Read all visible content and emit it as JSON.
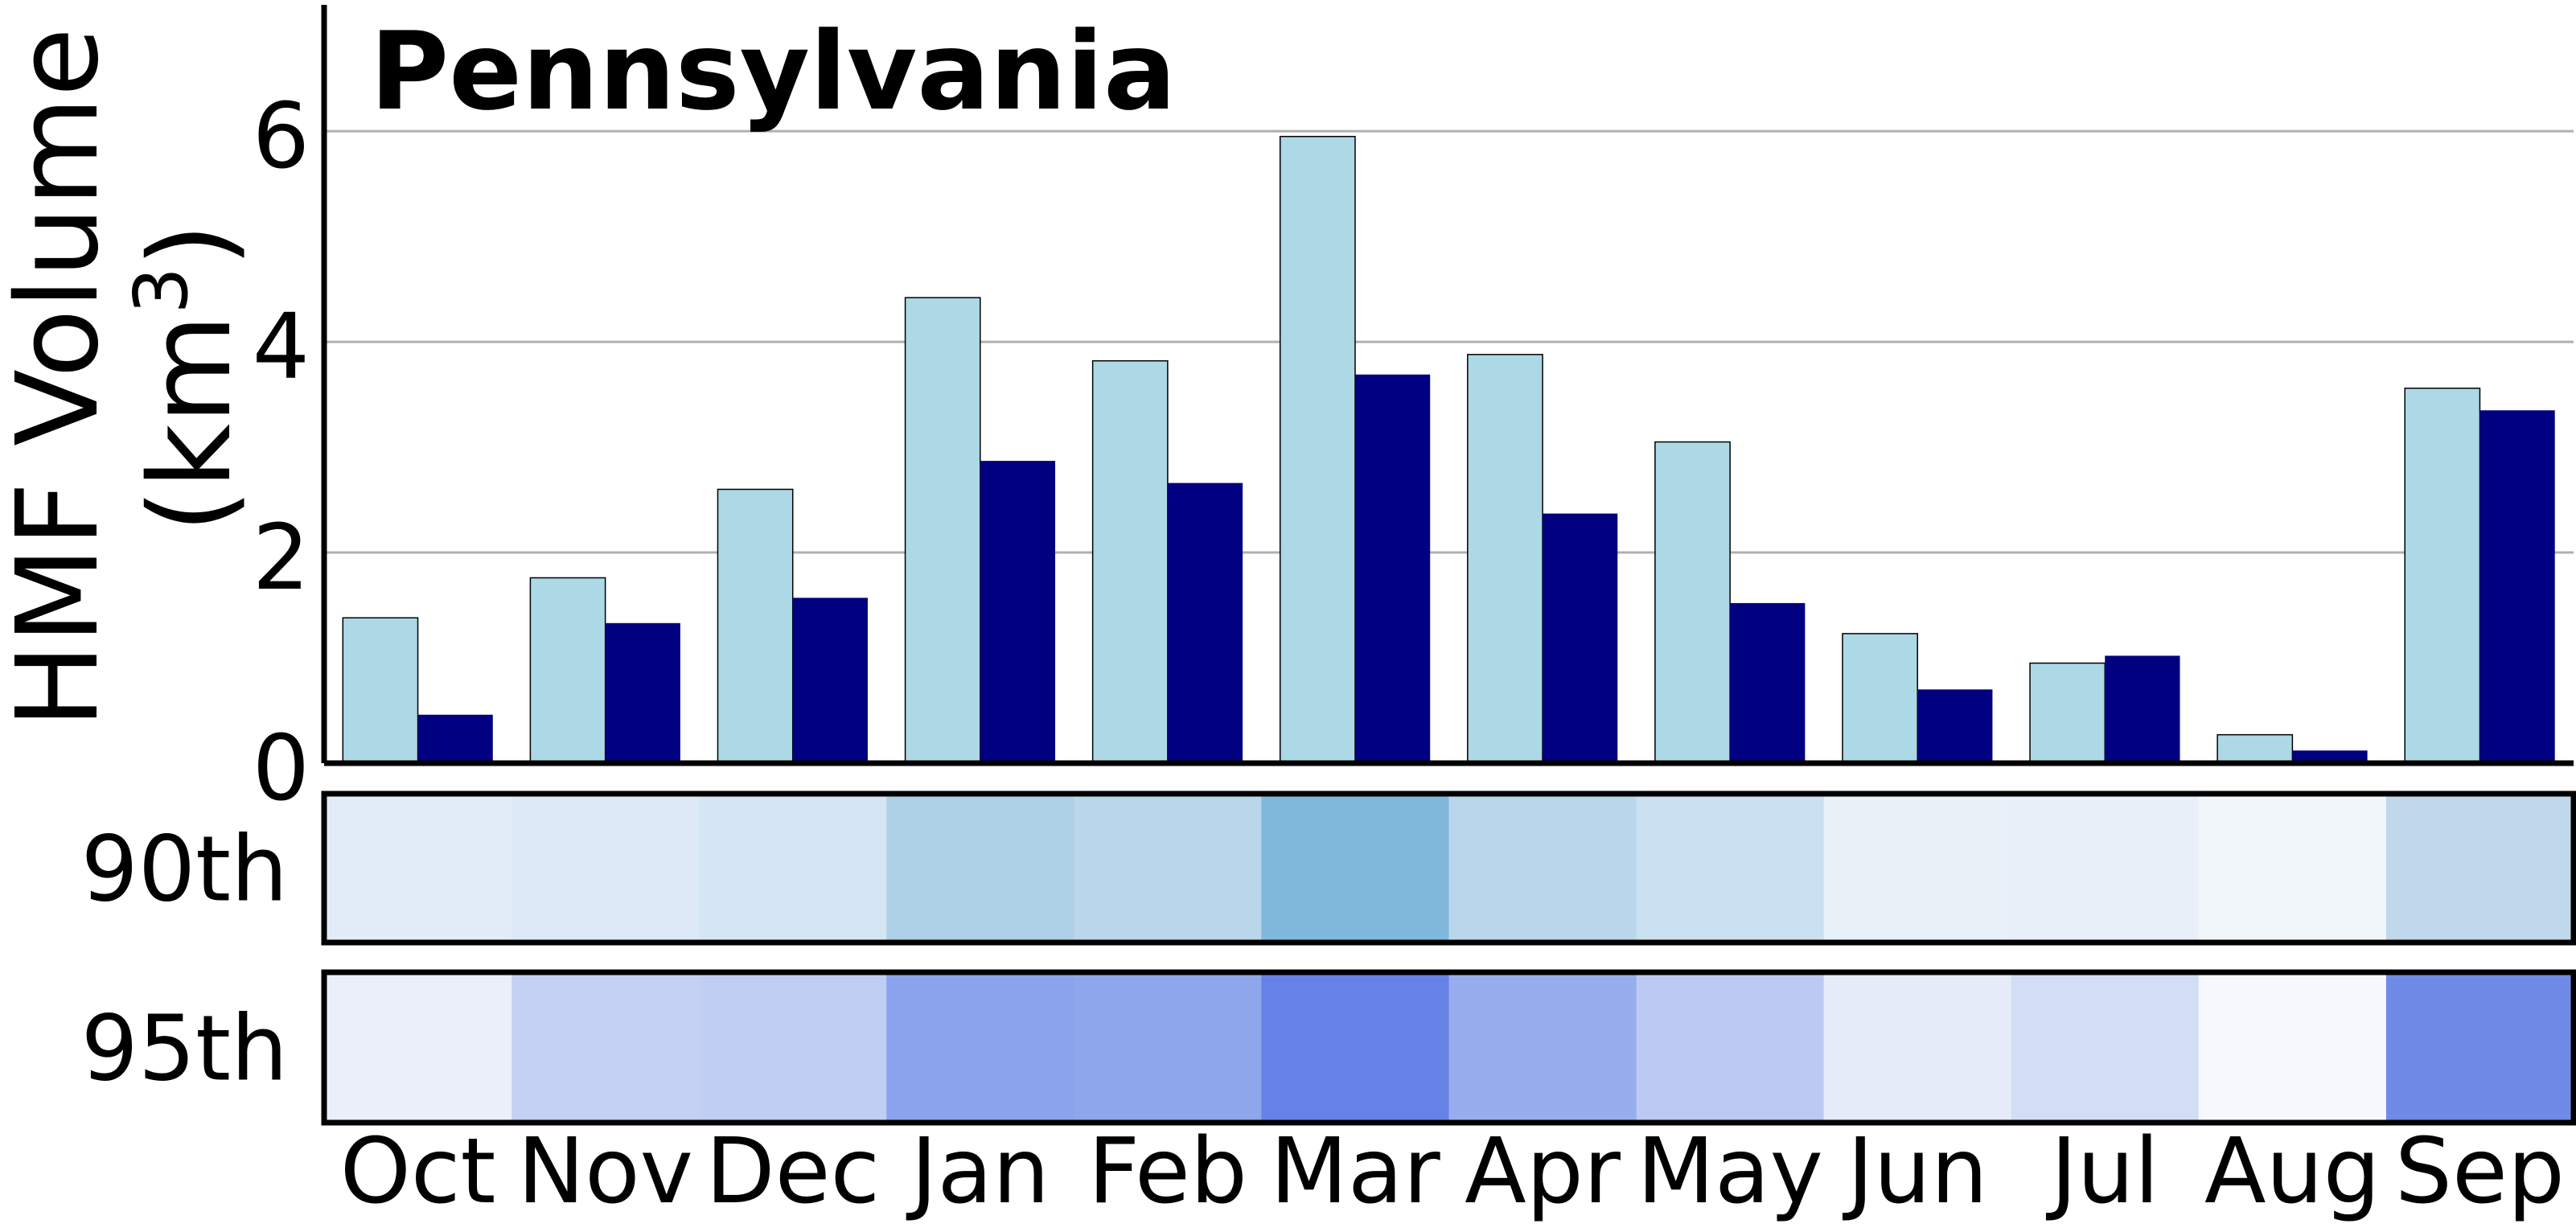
{
  "chart_data": {
    "type": "bar",
    "title": "Pennsylvania",
    "ylabel_line1": "HMF Volume",
    "ylabel_line2": "(km",
    "ylabel_sup": "3",
    "ylabel_close": ")",
    "xlabel": "",
    "ylim": [
      0,
      7.2
    ],
    "yticks": [
      {
        "value": 0,
        "label": "0"
      },
      {
        "value": 2,
        "label": "2"
      },
      {
        "value": 4,
        "label": "4"
      },
      {
        "value": 6,
        "label": "6"
      }
    ],
    "grid": "horizontal",
    "categories": [
      "Oct",
      "Nov",
      "Dec",
      "Jan",
      "Feb",
      "Mar",
      "Apr",
      "May",
      "Jun",
      "Jul",
      "Aug",
      "Sep"
    ],
    "series": [
      {
        "color": "#add8e6",
        "values": [
          1.38,
          1.76,
          2.6,
          4.42,
          3.82,
          5.95,
          3.88,
          3.05,
          1.23,
          0.95,
          0.27,
          3.56
        ]
      },
      {
        "color": "#000080",
        "values": [
          0.46,
          1.33,
          1.57,
          2.87,
          2.66,
          3.69,
          2.37,
          1.52,
          0.7,
          1.02,
          0.12,
          3.35
        ]
      }
    ],
    "heatmap_rows": [
      {
        "label": "90th",
        "colors": [
          "#e2ecf7",
          "#dde9f6",
          "#d6e5f3",
          "#add1e6",
          "#b9d6ea",
          "#80b8dc",
          "#bad6ea",
          "#cbe0f1",
          "#e8f0f8",
          "#e8eff8",
          "#f1f6fb",
          "#c0d8ec"
        ]
      },
      {
        "label": "95th",
        "colors": [
          "#ebeff9",
          "#c4d1f3",
          "#c1cef3",
          "#8aa3ec",
          "#8ea6ec",
          "#6583e6",
          "#97adee",
          "#bcc9f3",
          "#e7ecfa",
          "#d4ddf6",
          "#f7f8fd",
          "#6f8be7"
        ]
      }
    ]
  }
}
